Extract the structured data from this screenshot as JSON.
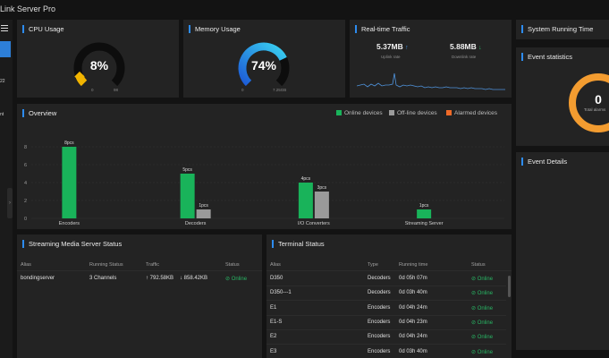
{
  "app": {
    "title": "Link Server Pro"
  },
  "sidebar": {
    "text1": "22",
    "text2": "nt",
    "handle": "›"
  },
  "cpu": {
    "title": "CPU Usage",
    "value": "8%",
    "percent": 8,
    "min": "0",
    "max": "98"
  },
  "memory": {
    "title": "Memory Usage",
    "value": "74%",
    "percent": 74,
    "min": "0",
    "max": "7.25GB"
  },
  "traffic": {
    "title": "Real-time Traffic",
    "uplink_value": "5.37MB",
    "uplink_arrow": "↑",
    "uplink_label": "Uplink rate",
    "downlink_value": "5.88MB",
    "downlink_arrow": "↓",
    "downlink_label": "Downlink rate"
  },
  "system": {
    "title": "System Running Time"
  },
  "event_stats": {
    "title": "Event statistics",
    "total_value": "0",
    "total_label": "Total alarms"
  },
  "event_details": {
    "title": "Event Details"
  },
  "overview": {
    "title": "Overview",
    "legend": [
      {
        "label": "Online devices",
        "color": "#19b35a"
      },
      {
        "label": "Off-line devices",
        "color": "#9a9a9a"
      },
      {
        "label": "Alarmed devices",
        "color": "#f06a28"
      }
    ]
  },
  "chart_data": {
    "type": "bar",
    "categories": [
      "Encoders",
      "Decoders",
      "I/O Converters",
      "Streaming Server"
    ],
    "series": [
      {
        "name": "Online devices",
        "values": [
          8,
          5,
          4,
          1
        ],
        "labels": [
          "8pcs",
          "5pcs",
          "4pcs",
          "1pcs"
        ]
      },
      {
        "name": "Off-line devices",
        "values": [
          0,
          1,
          3,
          0
        ],
        "labels": [
          "",
          "1pcs",
          "3pcs",
          ""
        ]
      },
      {
        "name": "Alarmed devices",
        "values": [
          0,
          0,
          0,
          0
        ],
        "labels": [
          "",
          "",
          "",
          ""
        ]
      }
    ],
    "ylim": [
      0,
      10
    ],
    "yticks": [
      "0",
      "2",
      "4",
      "6",
      "8"
    ],
    "grid": true,
    "legend_position": "top-right"
  },
  "streaming": {
    "title": "Streaming Media Server Status",
    "headers": [
      "Alias",
      "Running Status",
      "Traffic",
      "Status"
    ],
    "rows": [
      {
        "alias": "bondingserver",
        "running": "3 Channels",
        "up": "↑ 792.58KB",
        "down": "↓ 858.42KB",
        "status": "⊘ Online"
      }
    ]
  },
  "terminal": {
    "title": "Terminal Status",
    "headers": [
      "Alias",
      "Type",
      "Running time",
      "Status"
    ],
    "rows": [
      {
        "alias": "D350",
        "type": "Decoders",
        "time": "0d 05h 07m",
        "status": "⊘ Online"
      },
      {
        "alias": "D350---1",
        "type": "Decoders",
        "time": "0d 03h 40m",
        "status": "⊘ Online"
      },
      {
        "alias": "E1",
        "type": "Encoders",
        "time": "0d 04h 24m",
        "status": "⊘ Online"
      },
      {
        "alias": "E1-S",
        "type": "Encoders",
        "time": "0d 04h 23m",
        "status": "⊘ Online"
      },
      {
        "alias": "E2",
        "type": "Encoders",
        "time": "0d 04h 24m",
        "status": "⊘ Online"
      },
      {
        "alias": "E3",
        "type": "Encoders",
        "time": "0d 03h 40m",
        "status": "⊘ Online"
      }
    ]
  }
}
